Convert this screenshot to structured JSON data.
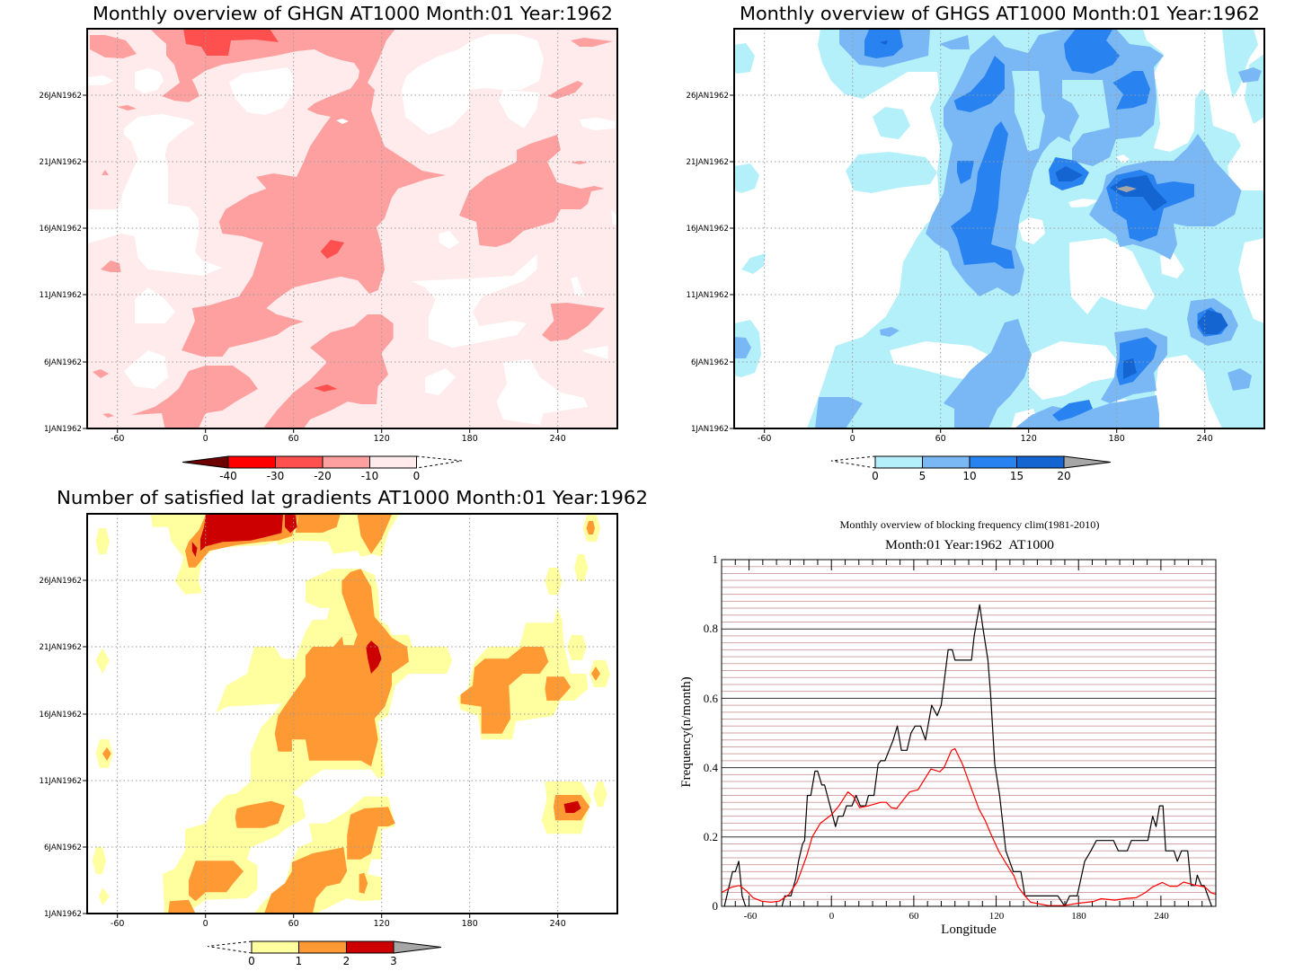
{
  "chart_data": [
    {
      "type": "heatmap",
      "title": "Monthly overview of GHGN AT1000 Month:01 Year:1962",
      "xlim": [
        -80,
        280
      ],
      "x_tick_labels": [
        "-60",
        "0",
        "60",
        "120",
        "180",
        "240"
      ],
      "y_tick_labels": [
        "1JAN1962",
        "6JAN1962",
        "11JAN1962",
        "16JAN1962",
        "21JAN1962",
        "26JAN1962"
      ],
      "colorbar": {
        "levels": [
          "-40",
          "-30",
          "-20",
          "-10",
          "0"
        ],
        "colors": [
          "#6e0000",
          "#ff0000",
          "#ff5050",
          "#ffa0a0",
          "#ffebeb",
          "#ffffff"
        ]
      }
    },
    {
      "type": "heatmap",
      "title": "Monthly overview of GHGS AT1000 Month:01 Year:1962",
      "xlim": [
        -80,
        280
      ],
      "x_tick_labels": [
        "-60",
        "0",
        "60",
        "120",
        "180",
        "240"
      ],
      "y_tick_labels": [
        "1JAN1962",
        "6JAN1962",
        "11JAN1962",
        "16JAN1962",
        "21JAN1962",
        "26JAN1962"
      ],
      "colorbar": {
        "levels": [
          "0",
          "5",
          "10",
          "15",
          "20"
        ],
        "colors": [
          "#ffffff",
          "#b4f0fa",
          "#7ab8f5",
          "#2882f0",
          "#1464d2",
          "#a6a6a6"
        ]
      }
    },
    {
      "type": "heatmap",
      "title": "Number of satisfied lat gradients AT1000 Month:01 Year:1962",
      "xlim": [
        -80,
        280
      ],
      "x_tick_labels": [
        "-60",
        "0",
        "60",
        "120",
        "180",
        "240"
      ],
      "y_tick_labels": [
        "1JAN1962",
        "6JAN1962",
        "11JAN1962",
        "16JAN1962",
        "21JAN1962",
        "26JAN1962"
      ],
      "colorbar": {
        "levels": [
          "0",
          "1",
          "2",
          "3"
        ],
        "colors": [
          "#ffffff",
          "#ffffa0",
          "#ff9933",
          "#cc0000",
          "#a6a6a6"
        ]
      }
    },
    {
      "type": "line",
      "title": "Monthly overview of blocking frequency clim(1981-2010)",
      "subtitle": "Month:01 Year:1962  AT1000",
      "xlabel": "Longitude",
      "ylabel": "Frequency(n/month)",
      "xlim": [
        -80,
        280
      ],
      "ylim": [
        0,
        1
      ],
      "x_ticks": [
        -60,
        0,
        60,
        120,
        180,
        240
      ],
      "x_tick_labels": [
        "-60",
        "0",
        "60",
        "120",
        "180",
        "240"
      ],
      "y_ticks": [
        0,
        0.2,
        0.4,
        0.6,
        0.8,
        1
      ],
      "y_tick_labels": [
        "0",
        "0.2",
        "0.4",
        "0.6",
        "0.8",
        "1"
      ],
      "minor_grid_step": 0.02,
      "grid": true,
      "series": [
        {
          "color": "#000000",
          "x": [
            -78,
            -72,
            -70,
            -67.5,
            -65,
            -62.5,
            -36,
            -34,
            -29.5,
            -26,
            -24,
            -21,
            -19.5,
            -17.5,
            -15,
            -12,
            -10,
            -7,
            -5,
            3,
            5,
            8.5,
            11,
            15,
            18,
            21,
            25,
            27,
            31,
            34,
            36,
            39,
            42,
            45,
            48,
            51,
            55,
            58,
            61,
            65,
            68.5,
            73,
            77,
            80,
            85,
            88,
            90,
            102,
            104,
            108,
            110.5,
            114,
            116,
            119,
            122.5,
            127,
            132.5,
            138,
            141,
            165,
            170,
            173.5,
            179,
            184.5,
            189,
            193,
            205.5,
            209,
            215.5,
            218.5,
            230.5,
            234,
            236.5,
            239,
            241.5,
            243.5,
            249.5,
            252,
            255,
            259.5,
            262,
            265,
            266.5,
            269.5,
            271.5,
            277
          ],
          "y": [
            0,
            0.1,
            0.1,
            0.13,
            0.03,
            0,
            0,
            0.03,
            0.03,
            0.08,
            0.13,
            0.18,
            0.19,
            0.32,
            0.32,
            0.39,
            0.39,
            0.35,
            0.35,
            0.23,
            0.26,
            0.26,
            0.29,
            0.29,
            0.32,
            0.29,
            0.29,
            0.32,
            0.32,
            0.41,
            0.42,
            0.42,
            0.45,
            0.48,
            0.52,
            0.45,
            0.45,
            0.5,
            0.52,
            0.52,
            0.48,
            0.58,
            0.55,
            0.58,
            0.74,
            0.74,
            0.71,
            0.71,
            0.78,
            0.87,
            0.8,
            0.71,
            0.61,
            0.41,
            0.32,
            0.16,
            0.1,
            0.1,
            0.03,
            0.03,
            0,
            0.03,
            0.03,
            0.13,
            0.16,
            0.19,
            0.19,
            0.16,
            0.16,
            0.19,
            0.19,
            0.26,
            0.23,
            0.29,
            0.29,
            0.16,
            0.16,
            0.13,
            0.16,
            0.16,
            0.06,
            0.06,
            0.09,
            0.06,
            0.06,
            0
          ]
        },
        {
          "color": "#ff0000",
          "x": [
            -80,
            -73,
            -67,
            -62,
            -57,
            -51,
            -44,
            -38,
            -31,
            -25,
            -18,
            -14,
            -8,
            0,
            5.5,
            12,
            16,
            20.5,
            27,
            36,
            40,
            43.5,
            47.5,
            53,
            57,
            63,
            72.5,
            79,
            82,
            87.5,
            90,
            95.5,
            101,
            107.5,
            112,
            116,
            122,
            127,
            133,
            136,
            140,
            145,
            158,
            169,
            180,
            191,
            196.5,
            206.5,
            215,
            222,
            228.5,
            234,
            241,
            246.5,
            252,
            256.5,
            264,
            272,
            276.5,
            280
          ],
          "y": [
            0.04,
            0.055,
            0.06,
            0.045,
            0.025,
            0.015,
            0.012,
            0.015,
            0.034,
            0.07,
            0.145,
            0.2,
            0.24,
            0.264,
            0.29,
            0.33,
            0.317,
            0.285,
            0.29,
            0.3,
            0.3,
            0.285,
            0.282,
            0.31,
            0.33,
            0.336,
            0.396,
            0.388,
            0.4,
            0.45,
            0.455,
            0.41,
            0.35,
            0.28,
            0.248,
            0.21,
            0.158,
            0.125,
            0.088,
            0.056,
            0.035,
            0.012,
            0.002,
            0.002,
            0.009,
            0.014,
            0.022,
            0.018,
            0.023,
            0.025,
            0.039,
            0.056,
            0.069,
            0.058,
            0.058,
            0.07,
            0.062,
            0.056,
            0.039,
            0.035
          ]
        }
      ]
    }
  ]
}
